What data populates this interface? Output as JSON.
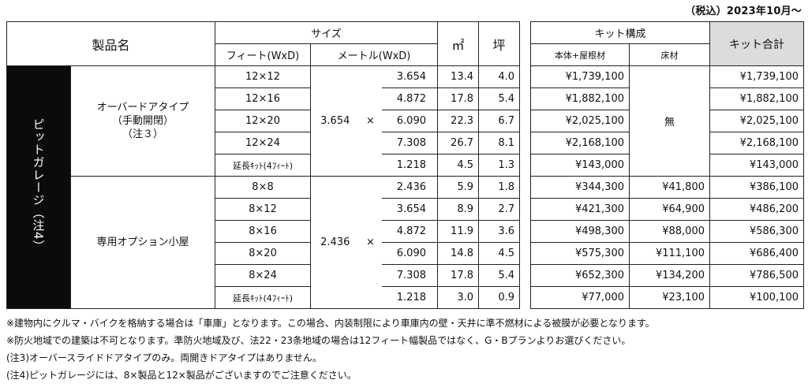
{
  "tax_note": "（税込）2023年10月〜",
  "header": {
    "product_name": "製品名",
    "size": "サイズ",
    "feet": "フィート(WxD)",
    "meter": "メートル(WxD)",
    "sqm": "㎡",
    "tsubo": "坪",
    "kit": "キット構成",
    "body_roof": "本体+屋根材",
    "floor": "床材",
    "kit_total": "キット合計"
  },
  "category_label": "ピットガレージ（注4）",
  "times": "×",
  "groups": [
    {
      "name_lines": [
        "オーバードアタイプ",
        "（手動開閉）",
        "（注３）"
      ],
      "meter_width": "3.654",
      "floor_note": "無",
      "rows": [
        {
          "feet": "12×12",
          "depth": "3.654",
          "sqm": "13.4",
          "tsubo": "4.0",
          "body": "¥1,739,100",
          "floor": "",
          "total": "¥1,739,100"
        },
        {
          "feet": "12×16",
          "depth": "4.872",
          "sqm": "17.8",
          "tsubo": "5.4",
          "body": "¥1,882,100",
          "floor": "",
          "total": "¥1,882,100"
        },
        {
          "feet": "12×20",
          "depth": "6.090",
          "sqm": "22.3",
          "tsubo": "6.7",
          "body": "¥2,025,100",
          "floor": "",
          "total": "¥2,025,100"
        },
        {
          "feet": "12×24",
          "depth": "7.308",
          "sqm": "26.7",
          "tsubo": "8.1",
          "body": "¥2,168,100",
          "floor": "",
          "total": "¥2,168,100"
        }
      ],
      "extension": {
        "label": "延長ｷｯﾄ(4ﾌｨｰﾄ)",
        "depth": "1.218",
        "sqm": "4.5",
        "tsubo": "1.3",
        "body": "¥143,000",
        "floor": "",
        "total": "¥143,000"
      }
    },
    {
      "name_lines": [
        "専用オプション小屋"
      ],
      "meter_width": "2.436",
      "floor_note": "",
      "rows": [
        {
          "feet": "8×8",
          "depth": "2.436",
          "sqm": "5.9",
          "tsubo": "1.8",
          "body": "¥344,300",
          "floor": "¥41,800",
          "total": "¥386,100"
        },
        {
          "feet": "8×12",
          "depth": "3.654",
          "sqm": "8.9",
          "tsubo": "2.7",
          "body": "¥421,300",
          "floor": "¥64,900",
          "total": "¥486,200"
        },
        {
          "feet": "8×16",
          "depth": "4.872",
          "sqm": "11.9",
          "tsubo": "3.6",
          "body": "¥498,300",
          "floor": "¥88,000",
          "total": "¥586,300"
        },
        {
          "feet": "8×20",
          "depth": "6.090",
          "sqm": "14.8",
          "tsubo": "4.5",
          "body": "¥575,300",
          "floor": "¥111,100",
          "total": "¥686,400"
        },
        {
          "feet": "8×24",
          "depth": "7.308",
          "sqm": "17.8",
          "tsubo": "5.4",
          "body": "¥652,300",
          "floor": "¥134,200",
          "total": "¥786,500"
        }
      ],
      "extension": {
        "label": "延長ｷｯﾄ(4ﾌｨｰﾄ)",
        "depth": "1.218",
        "sqm": "3.0",
        "tsubo": "0.9",
        "body": "¥77,000",
        "floor": "¥23,100",
        "total": "¥100,100"
      }
    }
  ],
  "footnotes": [
    "※建物内にクルマ・バイクを格納する場合は「車庫」となります。この場合、内装制限により車庫内の壁・天井に準不燃材による被膜が必要となります。",
    "※防火地域での建築は不可となります。準防火地域及び、法22・23条地域の場合は12フィート幅製品ではなく、G・Bプランよりお選びください。",
    "(注3)オーバースライドドアタイプのみ。両開きドアタイプはありません。",
    "(注4)ピットガレージには、8×製品と12×製品がございますのでご注意ください。"
  ]
}
